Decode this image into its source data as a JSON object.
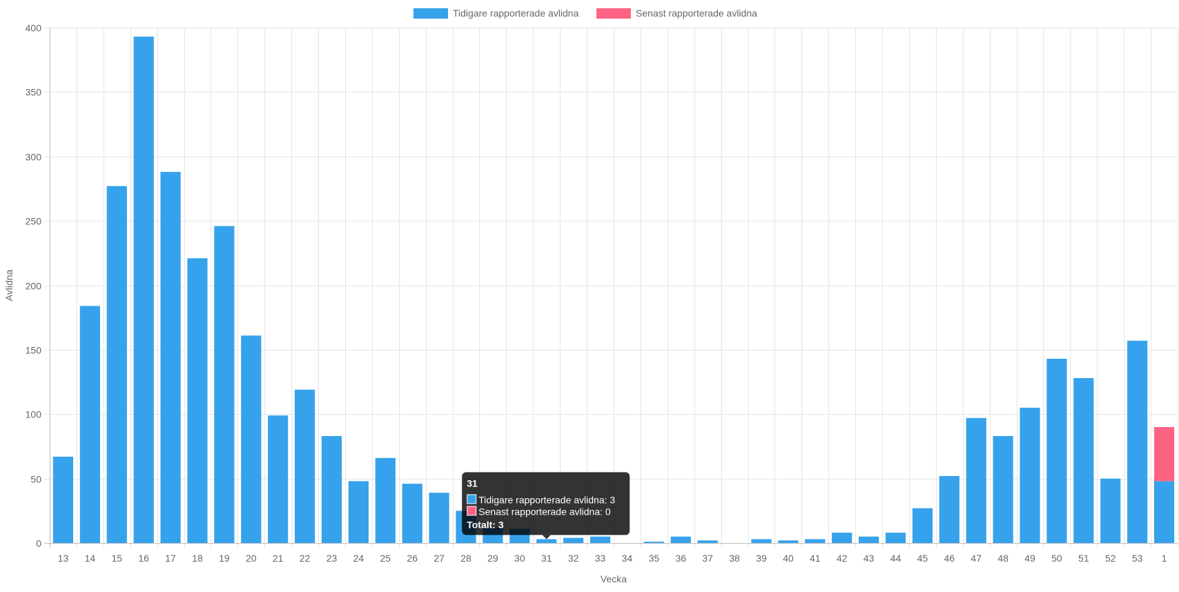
{
  "chart_data": {
    "type": "bar",
    "stacked": true,
    "categories": [
      "13",
      "14",
      "15",
      "16",
      "17",
      "18",
      "19",
      "20",
      "21",
      "22",
      "23",
      "24",
      "25",
      "26",
      "27",
      "28",
      "29",
      "30",
      "31",
      "32",
      "33",
      "34",
      "35",
      "36",
      "37",
      "38",
      "39",
      "40",
      "41",
      "42",
      "43",
      "44",
      "45",
      "46",
      "47",
      "48",
      "49",
      "50",
      "51",
      "52",
      "53",
      "1"
    ],
    "series": [
      {
        "name": "Tidigare rapporterade avlidna",
        "color": "#36a2eb",
        "values": [
          67,
          184,
          277,
          393,
          288,
          221,
          246,
          161,
          99,
          119,
          83,
          48,
          66,
          46,
          39,
          25,
          12,
          11,
          3,
          4,
          5,
          0,
          1,
          5,
          2,
          0,
          3,
          2,
          3,
          8,
          5,
          8,
          27,
          52,
          97,
          83,
          105,
          143,
          128,
          50,
          157,
          48
        ]
      },
      {
        "name": "Senast rapporterade avlidna",
        "color": "#ff6384",
        "values": [
          0,
          0,
          0,
          0,
          0,
          0,
          0,
          0,
          0,
          0,
          0,
          0,
          0,
          0,
          0,
          0,
          0,
          0,
          0,
          0,
          0,
          0,
          0,
          0,
          0,
          0,
          0,
          0,
          0,
          0,
          0,
          0,
          0,
          0,
          0,
          0,
          0,
          0,
          0,
          0,
          0,
          42
        ]
      }
    ],
    "xlabel": "Vecka",
    "ylabel": "Avlidna",
    "ylim": [
      0,
      400
    ],
    "yticks": [
      0,
      50,
      100,
      150,
      200,
      250,
      300,
      350,
      400
    ],
    "grid": true,
    "legend_position": "top-center",
    "tooltip": {
      "category": "31",
      "lines": [
        "Tidigare rapporterade avlidna: 3",
        "Senast rapporterade avlidna: 0"
      ],
      "footer": "Totalt: 3"
    }
  }
}
